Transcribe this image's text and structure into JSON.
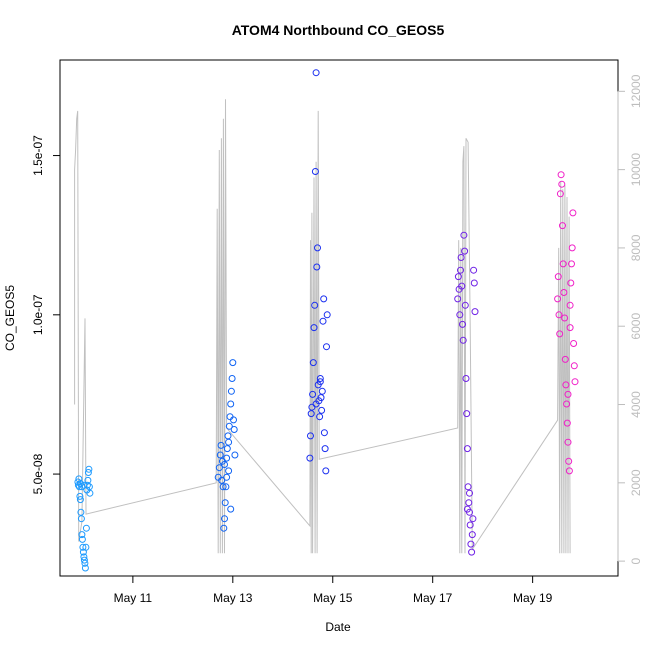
{
  "chart_data": {
    "type": "scatter",
    "title": "ATOM4 Northbound CO_GEOS5",
    "xlabel": "Date",
    "ylabel": "CO_GEOS5",
    "x_range_days": [
      "May 09 13:00",
      "May 20 17:00"
    ],
    "x_ticks": [
      "May 11",
      "May 13",
      "May 15",
      "May 17",
      "May 19"
    ],
    "ylim": [
      1.8e-08,
      1.8e-07
    ],
    "y_ticks": [
      "5.0e-08",
      "1.0e-07",
      "1.5e-07"
    ],
    "y2_ticks": [
      "0",
      "2000",
      "4000",
      "6000",
      "8000",
      "10000",
      "12000"
    ],
    "y2lim": [
      -380,
      12800
    ],
    "grid": false,
    "marker": "open-circle",
    "series": [
      {
        "color": "#1e9bff",
        "points": [
          [
            "May 09 21:36",
            4.75e-08
          ],
          [
            "May 09 21:50",
            4.65e-08
          ],
          [
            "May 09 22:05",
            4.85e-08
          ],
          [
            "May 09 22:19",
            4.6e-08
          ],
          [
            "May 09 22:34",
            4.3e-08
          ],
          [
            "May 09 22:48",
            4.2e-08
          ],
          [
            "May 09 23:02",
            3.8e-08
          ],
          [
            "May 09 23:17",
            3.6e-08
          ],
          [
            "May 09 23:31",
            3.1e-08
          ],
          [
            "May 09 23:46",
            2.95e-08
          ],
          [
            "May 10 00:00",
            2.7e-08
          ],
          [
            "May 10 00:14",
            2.55e-08
          ],
          [
            "May 10 00:29",
            2.4e-08
          ],
          [
            "May 10 00:43",
            2.3e-08
          ],
          [
            "May 10 00:58",
            2.2e-08
          ],
          [
            "May 10 01:12",
            2.05e-08
          ],
          [
            "May 10 01:26",
            2.7e-08
          ],
          [
            "May 10 01:41",
            3.3e-08
          ],
          [
            "May 10 01:55",
            4.5e-08
          ],
          [
            "May 10 02:10",
            4.65e-08
          ],
          [
            "May 10 02:24",
            4.8e-08
          ],
          [
            "May 10 02:38",
            5.05e-08
          ],
          [
            "May 10 02:53",
            5.15e-08
          ],
          [
            "May 10 03:07",
            4.6e-08
          ],
          [
            "May 10 03:22",
            4.4e-08
          ],
          [
            "May 09 22:48",
            4.7e-08
          ],
          [
            "May 09 23:31",
            4.6e-08
          ],
          [
            "May 10 00:29",
            4.65e-08
          ]
        ]
      },
      {
        "color": "#0f63f4",
        "points": [
          [
            "May 12 17:00",
            4.9e-08
          ],
          [
            "May 12 17:30",
            5.2e-08
          ],
          [
            "May 12 18:00",
            5.6e-08
          ],
          [
            "May 12 18:20",
            5.9e-08
          ],
          [
            "May 12 18:40",
            4.8e-08
          ],
          [
            "May 12 19:00",
            5.4e-08
          ],
          [
            "May 12 19:20",
            4.6e-08
          ],
          [
            "May 12 19:40",
            3.3e-08
          ],
          [
            "May 12 20:00",
            3.6e-08
          ],
          [
            "May 12 20:20",
            4.1e-08
          ],
          [
            "May 12 20:40",
            4.6e-08
          ],
          [
            "May 12 21:00",
            5.5e-08
          ],
          [
            "May 12 21:20",
            5.8e-08
          ],
          [
            "May 12 21:40",
            6.2e-08
          ],
          [
            "May 12 22:00",
            5.1e-08
          ],
          [
            "May 12 22:20",
            6.5e-08
          ],
          [
            "May 12 22:40",
            6.8e-08
          ],
          [
            "May 12 23:00",
            7.2e-08
          ],
          [
            "May 12 23:20",
            7.6e-08
          ],
          [
            "May 12 23:40",
            8e-08
          ],
          [
            "May 13 00:00",
            8.5e-08
          ],
          [
            "May 13 00:20",
            6.7e-08
          ],
          [
            "May 13 00:40",
            6.4e-08
          ],
          [
            "May 13 01:00",
            5.6e-08
          ],
          [
            "May 12 23:00",
            3.9e-08
          ],
          [
            "May 12 21:00",
            4.9e-08
          ],
          [
            "May 12 20:00",
            5.3e-08
          ],
          [
            "May 12 22:00",
            6e-08
          ]
        ]
      },
      {
        "color": "#1a2ff0",
        "points": [
          [
            "May 14 13:00",
            5.5e-08
          ],
          [
            "May 14 13:20",
            6.2e-08
          ],
          [
            "May 14 13:40",
            6.9e-08
          ],
          [
            "May 14 14:00",
            7.1e-08
          ],
          [
            "May 14 14:20",
            7.5e-08
          ],
          [
            "May 14 14:40",
            8.5e-08
          ],
          [
            "May 14 15:00",
            9.6e-08
          ],
          [
            "May 14 15:20",
            1.03e-07
          ],
          [
            "May 14 15:40",
            1.45e-07
          ],
          [
            "May 14 16:00",
            1.76e-07
          ],
          [
            "May 14 16:20",
            1.15e-07
          ],
          [
            "May 14 16:40",
            1.21e-07
          ],
          [
            "May 14 17:00",
            7.8e-08
          ],
          [
            "May 14 17:20",
            7.3e-08
          ],
          [
            "May 14 17:40",
            6.8e-08
          ],
          [
            "May 14 18:00",
            8e-08
          ],
          [
            "May 14 18:20",
            7.4e-08
          ],
          [
            "May 14 18:40",
            7e-08
          ],
          [
            "May 14 19:00",
            7.6e-08
          ],
          [
            "May 14 19:20",
            9.8e-08
          ],
          [
            "May 14 19:40",
            1.05e-07
          ],
          [
            "May 14 20:00",
            6.3e-08
          ],
          [
            "May 14 20:20",
            5.8e-08
          ],
          [
            "May 14 20:40",
            5.1e-08
          ],
          [
            "May 14 21:00",
            9e-08
          ],
          [
            "May 14 21:20",
            1e-07
          ],
          [
            "May 14 16:00",
            7.2e-08
          ],
          [
            "May 14 18:00",
            7.9e-08
          ]
        ]
      },
      {
        "color": "#6f22e6",
        "points": [
          [
            "May 17 12:00",
            1.05e-07
          ],
          [
            "May 17 12:20",
            1.12e-07
          ],
          [
            "May 17 12:40",
            1.08e-07
          ],
          [
            "May 17 13:00",
            1e-07
          ],
          [
            "May 17 13:20",
            1.14e-07
          ],
          [
            "May 17 13:40",
            1.18e-07
          ],
          [
            "May 17 14:00",
            1.09e-07
          ],
          [
            "May 17 14:20",
            9.7e-08
          ],
          [
            "May 17 14:40",
            9.2e-08
          ],
          [
            "May 17 15:00",
            1.25e-07
          ],
          [
            "May 17 15:20",
            1.2e-07
          ],
          [
            "May 17 15:40",
            1.03e-07
          ],
          [
            "May 17 16:00",
            8e-08
          ],
          [
            "May 17 16:20",
            6.9e-08
          ],
          [
            "May 17 16:40",
            5.8e-08
          ],
          [
            "May 17 17:00",
            4.6e-08
          ],
          [
            "May 17 17:20",
            4.1e-08
          ],
          [
            "May 17 17:40",
            3.8e-08
          ],
          [
            "May 17 18:00",
            3.4e-08
          ],
          [
            "May 17 18:20",
            2.8e-08
          ],
          [
            "May 17 18:40",
            2.55e-08
          ],
          [
            "May 17 19:00",
            3.1e-08
          ],
          [
            "May 17 19:20",
            3.6e-08
          ],
          [
            "May 17 19:40",
            1.14e-07
          ],
          [
            "May 17 20:00",
            1.1e-07
          ],
          [
            "May 17 20:20",
            1.01e-07
          ],
          [
            "May 17 16:40",
            3.9e-08
          ],
          [
            "May 17 17:40",
            4.4e-08
          ]
        ]
      },
      {
        "color": "#f020c8",
        "points": [
          [
            "May 19 12:00",
            1.05e-07
          ],
          [
            "May 19 12:20",
            1.12e-07
          ],
          [
            "May 19 12:40",
            1e-07
          ],
          [
            "May 19 13:00",
            9.4e-08
          ],
          [
            "May 19 13:20",
            1.38e-07
          ],
          [
            "May 19 13:40",
            1.44e-07
          ],
          [
            "May 19 14:00",
            1.41e-07
          ],
          [
            "May 19 14:20",
            1.28e-07
          ],
          [
            "May 19 14:40",
            1.16e-07
          ],
          [
            "May 19 15:00",
            1.07e-07
          ],
          [
            "May 19 15:20",
            9.9e-08
          ],
          [
            "May 19 15:40",
            8.6e-08
          ],
          [
            "May 19 16:00",
            7.8e-08
          ],
          [
            "May 19 16:20",
            7.2e-08
          ],
          [
            "May 19 16:40",
            6.6e-08
          ],
          [
            "May 19 17:00",
            6e-08
          ],
          [
            "May 19 17:20",
            5.4e-08
          ],
          [
            "May 19 17:40",
            5.1e-08
          ],
          [
            "May 19 18:00",
            1.03e-07
          ],
          [
            "May 19 18:20",
            1.1e-07
          ],
          [
            "May 19 18:40",
            1.16e-07
          ],
          [
            "May 19 19:00",
            1.21e-07
          ],
          [
            "May 19 19:20",
            1.32e-07
          ],
          [
            "May 19 19:40",
            9.1e-08
          ],
          [
            "May 19 20:00",
            8.4e-08
          ],
          [
            "May 19 20:20",
            7.9e-08
          ],
          [
            "May 19 17:00",
            7.5e-08
          ],
          [
            "May 19 18:00",
            9.6e-08
          ]
        ]
      }
    ],
    "altitude_trace": {
      "color": "#c0c0c0",
      "points": [
        [
          "May 09 20:00",
          4000
        ],
        [
          "May 09 20:00",
          10000
        ],
        [
          "May 09 20:30",
          10500
        ],
        [
          "May 09 21:00",
          11300
        ],
        [
          "May 09 21:30",
          11500
        ],
        [
          "May 09 22:00",
          500
        ],
        [
          "May 09 23:30",
          1000
        ],
        [
          "May 10 01:00",
          6200
        ],
        [
          "May 10 01:30",
          1200
        ],
        [
          "May 12 16:00",
          2000
        ],
        [
          "May 12 16:30",
          9000
        ],
        [
          "May 12 17:00",
          200
        ],
        [
          "May 12 17:30",
          10500
        ],
        [
          "May 12 18:00",
          200
        ],
        [
          "May 12 18:30",
          10800
        ],
        [
          "May 12 19:00",
          200
        ],
        [
          "May 12 19:30",
          11300
        ],
        [
          "May 12 20:00",
          200
        ],
        [
          "May 12 20:30",
          11800
        ],
        [
          "May 12 21:00",
          3400
        ],
        [
          "May 14 13:00",
          900
        ],
        [
          "May 14 13:20",
          8200
        ],
        [
          "May 14 13:40",
          200
        ],
        [
          "May 14 14:00",
          8900
        ],
        [
          "May 14 14:20",
          200
        ],
        [
          "May 14 15:00",
          9800
        ],
        [
          "May 14 15:30",
          200
        ],
        [
          "May 14 16:00",
          10200
        ],
        [
          "May 14 16:30",
          200
        ],
        [
          "May 14 17:00",
          11500
        ],
        [
          "May 14 17:30",
          2600
        ],
        [
          "May 17 12:00",
          3400
        ],
        [
          "May 17 12:30",
          8200
        ],
        [
          "May 17 13:00",
          200
        ],
        [
          "May 17 13:30",
          8000
        ],
        [
          "May 17 14:00",
          200
        ],
        [
          "May 17 14:30",
          10200
        ],
        [
          "May 17 15:00",
          10600
        ],
        [
          "May 17 15:30",
          200
        ],
        [
          "May 17 16:00",
          10800
        ],
        [
          "May 17 17:00",
          10700
        ],
        [
          "May 17 18:00",
          6000
        ],
        [
          "May 17 19:00",
          300
        ],
        [
          "May 19 12:00",
          3600
        ],
        [
          "May 19 12:30",
          8000
        ],
        [
          "May 19 13:00",
          200
        ],
        [
          "May 19 13:30",
          9700
        ],
        [
          "May 19 14:00",
          200
        ],
        [
          "May 19 14:30",
          9500
        ],
        [
          "May 19 15:00",
          200
        ],
        [
          "May 19 15:30",
          9600
        ],
        [
          "May 19 16:00",
          200
        ],
        [
          "May 19 16:30",
          9300
        ],
        [
          "May 19 17:00",
          200
        ],
        [
          "May 19 17:30",
          8800
        ],
        [
          "May 19 18:00",
          200
        ]
      ]
    }
  }
}
